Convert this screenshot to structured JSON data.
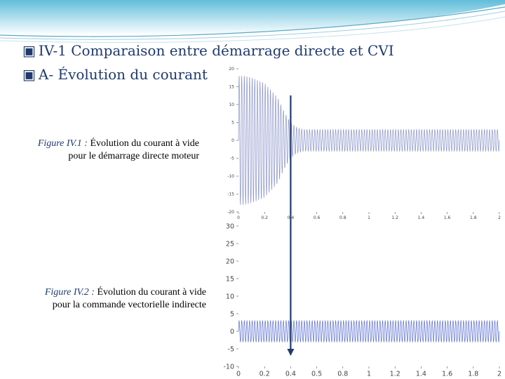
{
  "slide": {
    "heading_main": "IV-1 Comparaison entre démarrage directe et CVI",
    "heading_sub": "A- Évolution du courant",
    "bullet_glyph": "▣",
    "accent_color": "#1f3a6e",
    "banner_color": "#4fb6d6"
  },
  "figure1": {
    "label": "Figure IV.1 :",
    "caption_line1": "Évolution du courant à vide",
    "caption_line2": "pour le démarrage directe moteur"
  },
  "figure2": {
    "label": "Figure IV.2 :",
    "caption_line1": "Évolution du courant à vide",
    "caption_line2": "pour la commande vectorielle indirecte"
  },
  "chart_data": [
    {
      "type": "line",
      "title": "",
      "xlabel": "",
      "ylabel": "",
      "xlim": [
        0,
        2
      ],
      "ylim": [
        -20,
        20
      ],
      "xticks": [
        "0",
        "0.2",
        "0.4",
        "0.6",
        "0.8",
        "1",
        "1.2",
        "1.4",
        "1.6",
        "1.8",
        "2"
      ],
      "yticks": [
        "20",
        "15",
        "10",
        "5",
        "0",
        "-5",
        "-10",
        "-15",
        "-20"
      ],
      "series": [
        {
          "color": "#8a93c8",
          "signal": "transient sinusoid, 50 Hz",
          "envelope_t": [
            0,
            0.05,
            0.1,
            0.2,
            0.3,
            0.35,
            0.4,
            0.45,
            0.5,
            2.0
          ],
          "envelope_amplitude": [
            18,
            18,
            17.5,
            16,
            12,
            8,
            5,
            3.5,
            3,
            3
          ]
        }
      ],
      "marker_x": 0.4,
      "marker_color": "#1f3a6e"
    },
    {
      "type": "line",
      "title": "",
      "xlabel": "",
      "ylabel": "",
      "xlim": [
        0,
        2
      ],
      "ylim": [
        -10,
        30
      ],
      "xticks": [
        "0",
        "0.2",
        "0.4",
        "0.5",
        "0.8",
        "1",
        "1.2",
        "1.4",
        "1.6",
        "1.8",
        "2"
      ],
      "yticks": [
        "30",
        "25",
        "20",
        "15",
        "10",
        "5",
        "0",
        "-5",
        "-10"
      ],
      "series": [
        {
          "color": "#5a6fcf",
          "signal": "steady sinusoid, 50 Hz",
          "envelope_t": [
            0,
            2.0
          ],
          "envelope_amplitude": [
            3,
            3
          ]
        }
      ],
      "marker_x": 0.4,
      "marker_color": "#1f3a6e"
    }
  ]
}
